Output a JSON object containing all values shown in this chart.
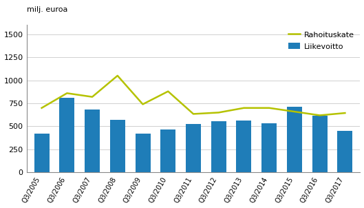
{
  "categories": [
    "Q3/2005",
    "Q3/2006",
    "Q3/2007",
    "Q3/2008",
    "Q3/2009",
    "Q3/2010",
    "Q3/2011",
    "Q3/2012",
    "Q3/2013",
    "Q3/2014",
    "Q3/2015",
    "Q3/2016",
    "Q3/2017"
  ],
  "liikevoitto": [
    420,
    810,
    680,
    570,
    425,
    465,
    525,
    555,
    565,
    535,
    710,
    615,
    455
  ],
  "rahoituskate": [
    700,
    860,
    820,
    1050,
    740,
    880,
    635,
    650,
    700,
    700,
    660,
    620,
    645
  ],
  "bar_color": "#1f7db8",
  "line_color": "#b5c200",
  "top_label": "milj. euroa",
  "ylim": [
    0,
    1600
  ],
  "yticks": [
    0,
    250,
    500,
    750,
    1000,
    1250,
    1500
  ],
  "legend_liikevoitto": "Liikevoitto",
  "legend_rahoituskate": "Rahoituskate",
  "bg_color": "#ffffff",
  "grid_color": "#d0d0d0"
}
